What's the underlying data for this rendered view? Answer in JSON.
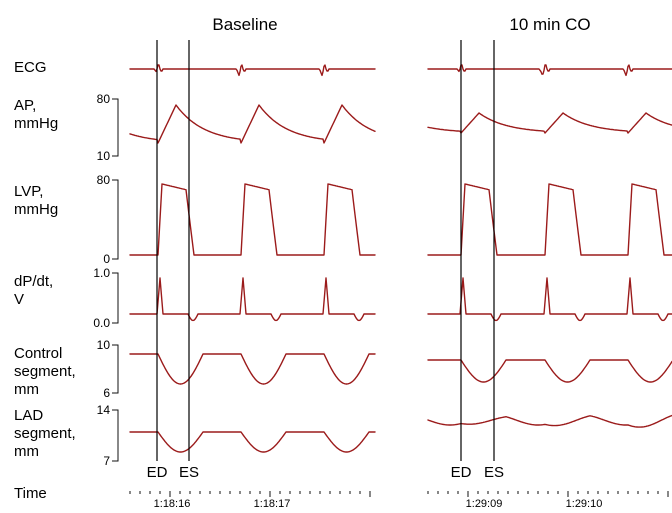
{
  "colors": {
    "trace": "#9b1b1b",
    "axis": "#111111"
  },
  "chart_data": {
    "type": "line",
    "panels": [
      {
        "title": "Baseline",
        "time_labels": [
          "1:18:16",
          "1:18:17"
        ],
        "marker_labels": {
          "ed": "ED",
          "es": "ES"
        }
      },
      {
        "title": "10 min CO",
        "time_labels": [
          "1:29:09",
          "1:29:10"
        ],
        "marker_labels": {
          "ed": "ED",
          "es": "ES"
        }
      }
    ],
    "rows": [
      {
        "label": "ECG",
        "scale": null
      },
      {
        "label": "AP,\nmmHg",
        "scale": {
          "top": "80",
          "bottom": "10"
        }
      },
      {
        "label": "LVP,\nmmHg",
        "scale": {
          "top": "80",
          "bottom": "0"
        }
      },
      {
        "label": "dP/dt,\nV",
        "scale": {
          "top": "1.0",
          "bottom": "0.0"
        }
      },
      {
        "label": "Control\nsegment,\nmm",
        "scale": {
          "top": "10",
          "bottom": "6"
        }
      },
      {
        "label": "LAD\nsegment,\nmm",
        "scale": {
          "top": "14",
          "bottom": "7"
        }
      }
    ],
    "time_row_label": "Time"
  }
}
